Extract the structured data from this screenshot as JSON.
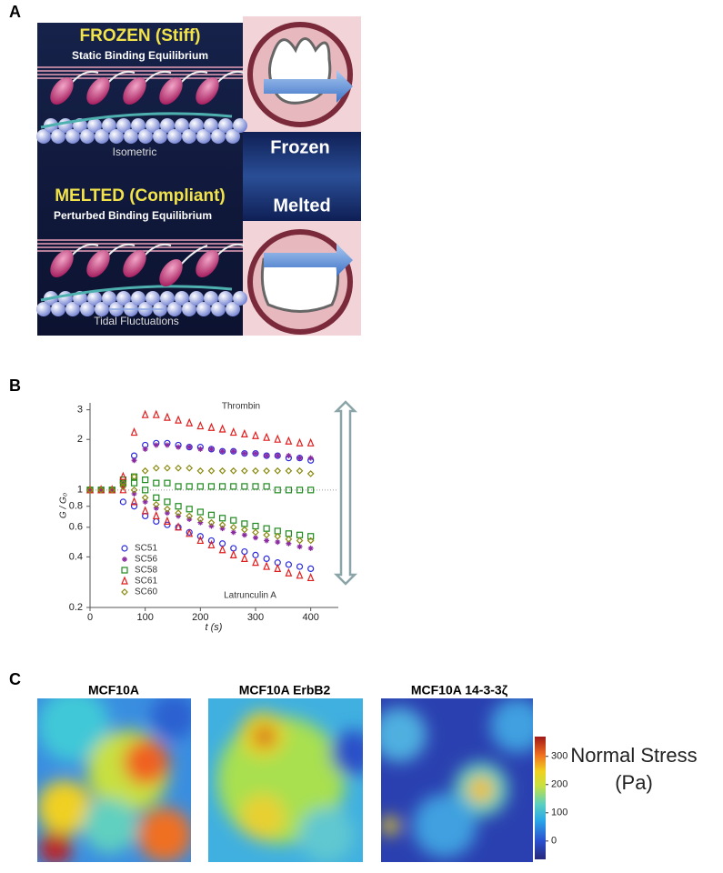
{
  "panel_labels": [
    "A",
    "B",
    "C"
  ],
  "panel_a": {
    "frozen_title": "FROZEN (Stiff)",
    "frozen_subtitle": "Static Binding Equilibrium",
    "frozen_caption": "Isometric",
    "melted_title": "MELTED (Compliant)",
    "melted_subtitle": "Perturbed Binding Equilibrium",
    "melted_caption": "Tidal Fluctuations",
    "frozen_label": "Frozen",
    "melted_label": "Melted"
  },
  "chart_data": {
    "type": "line",
    "log_y": true,
    "xlabel": "t (s)",
    "ylabel": "G / G₀",
    "annotations": [
      "Thrombin",
      "Latrunculin A"
    ],
    "hline": 1,
    "x": [
      0,
      20,
      40,
      60,
      80,
      100,
      120,
      140,
      160,
      180,
      200,
      220,
      240,
      260,
      280,
      300,
      320,
      340,
      360,
      380,
      400
    ],
    "xlim": [
      0,
      450
    ],
    "xticks": [
      0,
      100,
      200,
      300,
      400
    ],
    "ylim": [
      0.2,
      3.3
    ],
    "yticks": [
      0.2,
      0.4,
      0.6,
      0.8,
      1,
      2,
      3
    ],
    "series": [
      {
        "name": "SC51",
        "color": "#2a2ae0",
        "marker": "circle",
        "thrombin": [
          1,
          1,
          1,
          1.1,
          1.6,
          1.85,
          1.9,
          1.9,
          1.85,
          1.8,
          1.8,
          1.75,
          1.7,
          1.7,
          1.65,
          1.65,
          1.6,
          1.6,
          1.55,
          1.55,
          1.5
        ],
        "latrunculin": [
          1,
          1,
          1,
          0.85,
          0.8,
          0.7,
          0.65,
          0.62,
          0.6,
          0.56,
          0.53,
          0.5,
          0.48,
          0.45,
          0.43,
          0.41,
          0.39,
          0.37,
          0.36,
          0.35,
          0.34
        ]
      },
      {
        "name": "SC56",
        "color": "#8a2aa0",
        "marker": "star",
        "thrombin": [
          1,
          1,
          1,
          1.1,
          1.5,
          1.75,
          1.85,
          1.85,
          1.8,
          1.8,
          1.75,
          1.75,
          1.7,
          1.7,
          1.65,
          1.65,
          1.6,
          1.6,
          1.6,
          1.55,
          1.55
        ],
        "latrunculin": [
          1,
          1,
          1,
          1.05,
          0.95,
          0.85,
          0.78,
          0.73,
          0.7,
          0.67,
          0.64,
          0.61,
          0.59,
          0.56,
          0.54,
          0.52,
          0.5,
          0.49,
          0.48,
          0.46,
          0.45
        ]
      },
      {
        "name": "SC58",
        "color": "#1e8a1e",
        "marker": "square",
        "thrombin": [
          1,
          1,
          1,
          1.1,
          1.2,
          1.15,
          1.1,
          1.1,
          1.05,
          1.05,
          1.05,
          1.05,
          1.05,
          1.05,
          1.05,
          1.05,
          1.05,
          1,
          1,
          1,
          1
        ],
        "latrunculin": [
          1,
          1,
          1,
          1.15,
          1.1,
          1,
          0.9,
          0.85,
          0.8,
          0.77,
          0.74,
          0.71,
          0.68,
          0.66,
          0.63,
          0.61,
          0.59,
          0.57,
          0.55,
          0.54,
          0.53
        ]
      },
      {
        "name": "SC61",
        "color": "#e01e1e",
        "marker": "triangle",
        "thrombin": [
          1,
          1,
          1,
          1.2,
          2.2,
          2.8,
          2.8,
          2.7,
          2.6,
          2.5,
          2.4,
          2.35,
          2.3,
          2.2,
          2.15,
          2.1,
          2.05,
          2,
          1.95,
          1.9,
          1.9
        ],
        "latrunculin": [
          1,
          1,
          1,
          1,
          0.85,
          0.75,
          0.7,
          0.65,
          0.6,
          0.55,
          0.5,
          0.47,
          0.44,
          0.41,
          0.39,
          0.37,
          0.35,
          0.34,
          0.32,
          0.31,
          0.3
        ]
      },
      {
        "name": "SC60",
        "color": "#8a8a10",
        "marker": "diamond",
        "thrombin": [
          1,
          1,
          1,
          1.05,
          1.2,
          1.3,
          1.35,
          1.35,
          1.35,
          1.35,
          1.3,
          1.3,
          1.3,
          1.3,
          1.3,
          1.3,
          1.3,
          1.3,
          1.3,
          1.3,
          1.25
        ],
        "latrunculin": [
          1,
          1,
          1,
          1.1,
          1,
          0.9,
          0.82,
          0.77,
          0.73,
          0.7,
          0.67,
          0.64,
          0.62,
          0.6,
          0.58,
          0.56,
          0.54,
          0.53,
          0.51,
          0.5,
          0.5
        ]
      }
    ]
  },
  "panel_c": {
    "titles": [
      "MCF10A",
      "MCF10A ErbB2",
      "MCF10A 14-3-3ζ"
    ],
    "colorbar": {
      "label_lines": [
        "Normal Stress",
        "(Pa)"
      ],
      "clim": [
        -65,
        370
      ],
      "ticks": [
        0,
        100,
        200,
        300
      ]
    }
  }
}
